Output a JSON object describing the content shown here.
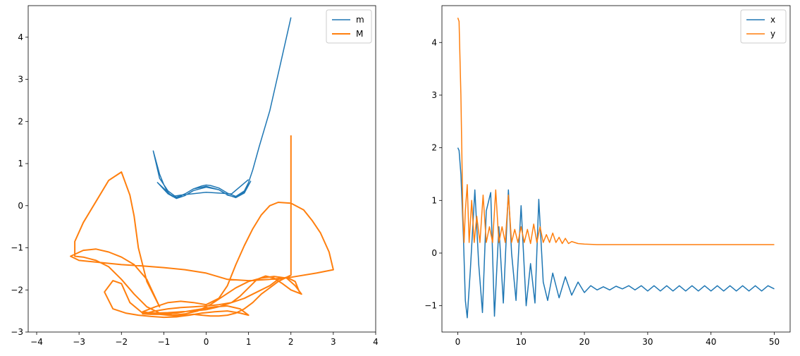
{
  "colors": {
    "series_blue": "#1f77b4",
    "series_orange": "#ff7f0e"
  },
  "chart_data": [
    {
      "type": "line",
      "grid": false,
      "legend_placement": "top-right",
      "xlim": [
        -4.2,
        4.0
      ],
      "ylim": [
        -3.0,
        4.75
      ],
      "xticks": [
        -4,
        -3,
        -2,
        -1,
        0,
        1,
        2,
        3,
        4
      ],
      "yticks": [
        -3,
        -2,
        -1,
        0,
        1,
        2,
        3,
        4
      ],
      "series": [
        {
          "name": "m",
          "color": "#1f77b4",
          "x": [
            2.0,
            1.75,
            1.5,
            1.25,
            1.1,
            1.0,
            0.9,
            0.7,
            0.5,
            0.3,
            0.1,
            0.0,
            -0.1,
            -0.3,
            -0.5,
            -0.7,
            -0.9,
            -1.0,
            -1.1,
            -1.25,
            -1.1,
            -0.9,
            -0.7,
            -0.5,
            -0.3,
            0.0,
            0.3,
            0.5,
            0.7,
            0.9,
            1.05,
            0.9,
            0.7,
            0.5,
            0.3,
            0.0,
            -0.3,
            -0.5,
            -0.7,
            -0.9,
            -1.15,
            -0.8,
            -0.6,
            0.0,
            0.6,
            1.0
          ],
          "y": [
            4.47,
            3.35,
            2.25,
            1.4,
            0.85,
            0.55,
            0.35,
            0.22,
            0.3,
            0.42,
            0.48,
            0.49,
            0.47,
            0.4,
            0.28,
            0.18,
            0.3,
            0.5,
            0.75,
            1.3,
            0.65,
            0.35,
            0.2,
            0.28,
            0.4,
            0.46,
            0.38,
            0.26,
            0.19,
            0.3,
            0.58,
            0.32,
            0.2,
            0.25,
            0.38,
            0.44,
            0.36,
            0.24,
            0.17,
            0.28,
            0.55,
            0.22,
            0.25,
            0.32,
            0.28,
            0.62
          ]
        },
        {
          "name": "M",
          "color": "#ff7f0e",
          "x": [
            2.0,
            2.0,
            2.0,
            1.9,
            1.7,
            1.5,
            1.3,
            1.1,
            0.9,
            0.7,
            0.5,
            0.3,
            0.1,
            -0.1,
            -0.3,
            -0.5,
            -0.7,
            -0.9,
            -1.1,
            -1.3,
            -1.5,
            -1.2,
            -0.9,
            -0.6,
            -0.3,
            0.0,
            0.3,
            0.5,
            0.7,
            0.9,
            1.1,
            1.3,
            1.5,
            1.7,
            2.0,
            2.3,
            2.5,
            2.7,
            2.9,
            3.0,
            2.6,
            2.0,
            1.5,
            1.0,
            0.5,
            0.0,
            -0.5,
            -1.0,
            -1.5,
            -2.0,
            -2.5,
            -3.0,
            -3.2,
            -2.9,
            -2.6,
            -2.3,
            -2.0,
            -1.7,
            -1.4,
            -1.1,
            -1.4,
            -1.6,
            -1.7,
            -1.8,
            -2.0,
            -2.3,
            -2.6,
            -2.9,
            -3.1,
            -3.1,
            -2.9,
            -2.6,
            -2.3,
            -2.0,
            -1.7,
            -1.4,
            -1.1,
            -0.8,
            -0.5,
            -0.2,
            0.1,
            0.4,
            0.7,
            1.0,
            1.3,
            1.6,
            1.9,
            2.1,
            2.25,
            2.0,
            1.8,
            1.6,
            1.4,
            1.2,
            1.0,
            0.8,
            0.6,
            0.3,
            0.0,
            -0.3,
            -0.6,
            -0.9,
            -1.2,
            -1.5,
            -1.8,
            -2.0,
            -2.2,
            -2.4,
            -2.2,
            -1.9,
            -1.6,
            -1.3,
            -1.0,
            -0.7,
            -0.4,
            -0.1,
            0.2,
            0.5,
            0.8,
            1.0,
            0.8,
            0.5,
            0.2,
            -0.1,
            -0.4,
            -0.7,
            -1.0,
            -1.3,
            -1.5,
            -1.2,
            -0.9,
            -0.6,
            -0.3,
            0.0,
            0.3,
            0.6,
            0.9,
            1.2,
            1.5,
            1.7,
            1.9,
            2.1,
            2.2
          ],
          "y": [
            1.67,
            0.05,
            -1.65,
            -1.7,
            -1.8,
            -1.95,
            -2.1,
            -2.3,
            -2.45,
            -2.55,
            -2.6,
            -2.62,
            -2.62,
            -2.6,
            -2.58,
            -2.6,
            -2.62,
            -2.6,
            -2.58,
            -2.55,
            -2.52,
            -2.4,
            -2.3,
            -2.27,
            -2.3,
            -2.35,
            -2.2,
            -1.9,
            -1.4,
            -0.95,
            -0.55,
            -0.22,
            0.0,
            0.08,
            0.06,
            -0.1,
            -0.35,
            -0.65,
            -1.1,
            -1.52,
            -1.6,
            -1.7,
            -1.75,
            -1.78,
            -1.75,
            -1.6,
            -1.52,
            -1.47,
            -1.43,
            -1.4,
            -1.35,
            -1.3,
            -1.2,
            -1.06,
            -1.03,
            -1.1,
            -1.22,
            -1.4,
            -1.75,
            -2.4,
            -1.8,
            -1.0,
            -0.25,
            0.25,
            0.8,
            0.6,
            0.1,
            -0.4,
            -0.85,
            -1.2,
            -1.22,
            -1.3,
            -1.45,
            -1.75,
            -2.1,
            -2.4,
            -2.55,
            -2.6,
            -2.57,
            -2.5,
            -2.35,
            -2.15,
            -1.95,
            -1.8,
            -1.72,
            -1.68,
            -1.72,
            -1.9,
            -2.1,
            -2.0,
            -1.85,
            -1.72,
            -1.67,
            -1.75,
            -1.95,
            -2.15,
            -2.3,
            -2.4,
            -2.47,
            -2.5,
            -2.52,
            -2.54,
            -2.55,
            -2.55,
            -2.3,
            -1.85,
            -1.78,
            -2.05,
            -2.45,
            -2.55,
            -2.6,
            -2.63,
            -2.65,
            -2.64,
            -2.6,
            -2.55,
            -2.52,
            -2.5,
            -2.55,
            -2.6,
            -2.45,
            -2.38,
            -2.4,
            -2.45,
            -2.5,
            -2.55,
            -2.58,
            -2.58,
            -2.57,
            -2.5,
            -2.45,
            -2.42,
            -2.4,
            -2.38,
            -2.35,
            -2.3,
            -2.2,
            -2.05,
            -1.9,
            -1.75,
            -1.7,
            -1.8,
            -2.05
          ]
        }
      ]
    },
    {
      "type": "line",
      "grid": false,
      "legend_placement": "top-right",
      "xlim": [
        -2.5,
        52.5
      ],
      "ylim": [
        -1.5,
        4.7
      ],
      "xticks": [
        0,
        10,
        20,
        30,
        40,
        50
      ],
      "yticks": [
        -1,
        0,
        1,
        2,
        3,
        4
      ],
      "series": [
        {
          "name": "x",
          "color": "#1f77b4",
          "x": [
            0.0,
            0.2,
            0.5,
            0.9,
            1.2,
            1.5,
            2.0,
            2.7,
            3.3,
            3.9,
            4.5,
            5.2,
            5.8,
            6.5,
            7.2,
            8.0,
            8.5,
            9.2,
            10.0,
            10.8,
            11.5,
            12.2,
            12.8,
            13.5,
            14.2,
            15.0,
            16.0,
            17.0,
            18.0,
            19.0,
            20.0,
            21.0,
            22.0,
            23.0,
            24.0,
            25.0,
            26.0,
            27.0,
            28.0,
            29.0,
            30.0,
            31.0,
            32.0,
            33.0,
            34.0,
            35.0,
            36.0,
            37.0,
            38.0,
            39.0,
            40.0,
            41.0,
            42.0,
            43.0,
            44.0,
            45.0,
            46.0,
            47.0,
            48.0,
            49.0,
            50.0
          ],
          "y": [
            2.0,
            1.95,
            1.5,
            0.3,
            -0.9,
            -1.23,
            -0.3,
            1.2,
            -0.2,
            -1.13,
            0.8,
            1.15,
            -1.2,
            0.5,
            -0.95,
            1.2,
            0.0,
            -0.9,
            0.9,
            -1.0,
            -0.2,
            -0.95,
            1.02,
            -0.55,
            -0.9,
            -0.38,
            -0.85,
            -0.45,
            -0.8,
            -0.55,
            -0.75,
            -0.62,
            -0.7,
            -0.64,
            -0.7,
            -0.63,
            -0.68,
            -0.62,
            -0.7,
            -0.62,
            -0.72,
            -0.62,
            -0.72,
            -0.62,
            -0.72,
            -0.62,
            -0.72,
            -0.62,
            -0.72,
            -0.62,
            -0.72,
            -0.62,
            -0.72,
            -0.62,
            -0.72,
            -0.62,
            -0.72,
            -0.62,
            -0.72,
            -0.62,
            -0.68
          ]
        },
        {
          "name": "y",
          "color": "#ff7f0e",
          "x": [
            0.0,
            0.2,
            0.5,
            0.8,
            1.0,
            1.2,
            1.5,
            1.8,
            2.2,
            2.6,
            3.0,
            3.5,
            4.0,
            4.5,
            5.0,
            5.5,
            6.0,
            6.5,
            7.0,
            7.5,
            8.0,
            8.5,
            9.0,
            9.5,
            10.0,
            10.5,
            11.0,
            11.5,
            12.0,
            12.5,
            13.0,
            13.5,
            14.0,
            14.5,
            15.0,
            15.5,
            16.0,
            16.5,
            17.0,
            17.5,
            18.0,
            19.0,
            20.0,
            22.0,
            25.0,
            30.0,
            35.0,
            40.0,
            45.0,
            50.0
          ],
          "y": [
            4.47,
            4.4,
            3.0,
            0.8,
            0.2,
            0.8,
            1.3,
            0.2,
            1.0,
            0.2,
            0.7,
            0.2,
            1.1,
            0.2,
            0.5,
            0.2,
            1.2,
            0.2,
            0.5,
            0.2,
            1.1,
            0.2,
            0.45,
            0.2,
            0.5,
            0.2,
            0.45,
            0.18,
            0.55,
            0.2,
            0.5,
            0.2,
            0.35,
            0.2,
            0.38,
            0.2,
            0.3,
            0.18,
            0.28,
            0.18,
            0.22,
            0.18,
            0.17,
            0.16,
            0.16,
            0.16,
            0.16,
            0.16,
            0.16,
            0.16
          ]
        }
      ]
    }
  ]
}
